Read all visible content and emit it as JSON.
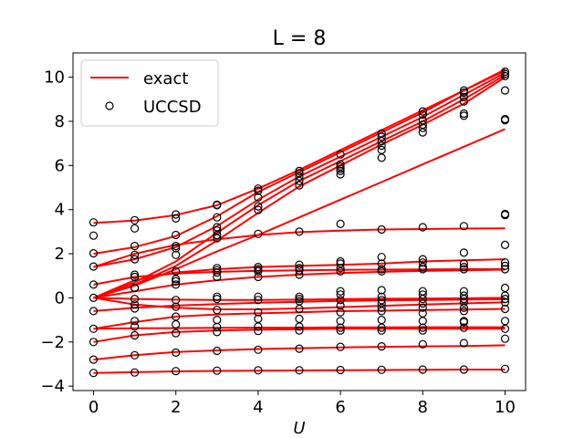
{
  "chart_data": {
    "type": "line",
    "title": "L = 8",
    "xlabel": "U",
    "ylabel": "",
    "xlim": [
      -0.5,
      10.5
    ],
    "ylim": [
      -4.2,
      11.1
    ],
    "xticks": [
      0,
      2,
      4,
      6,
      8,
      10
    ],
    "yticks": [
      -4,
      -2,
      0,
      2,
      4,
      6,
      8,
      10
    ],
    "grid": false,
    "legend_position": "upper-left",
    "legend": [
      {
        "label": "exact",
        "style": "line",
        "color": "#ff0000"
      },
      {
        "label": "UCCSD",
        "style": "circle",
        "color": "#000000"
      }
    ],
    "x": [
      0,
      1,
      2,
      3,
      4,
      5,
      6,
      7,
      8,
      9,
      10
    ],
    "series": [
      {
        "values": [
          0.0,
          0.55,
          1.3,
          2.1,
          2.85,
          3.65,
          4.45,
          5.25,
          6.05,
          6.85,
          7.65
        ],
        "color": "#ff0000"
      },
      {
        "values": [
          0.0,
          0.6,
          1.45,
          2.6,
          3.85,
          5.05,
          6.0,
          6.95,
          7.85,
          8.8,
          10.0
        ],
        "color": "#ff0000"
      },
      {
        "values": [
          0.0,
          0.7,
          1.65,
          2.95,
          4.2,
          5.3,
          6.2,
          7.1,
          8.0,
          9.0,
          10.1
        ],
        "color": "#ff0000"
      },
      {
        "values": [
          1.4,
          1.75,
          2.3,
          3.25,
          4.45,
          5.5,
          6.4,
          7.3,
          8.2,
          9.2,
          10.2
        ],
        "color": "#ff0000"
      },
      {
        "values": [
          2.0,
          2.3,
          2.8,
          3.7,
          4.8,
          5.7,
          6.6,
          7.5,
          8.4,
          9.4,
          10.3
        ],
        "color": "#ff0000"
      },
      {
        "values": [
          3.4,
          3.5,
          3.75,
          4.2,
          4.95,
          5.8,
          6.7,
          7.6,
          8.5,
          9.4,
          10.35
        ],
        "color": "#ff0000"
      },
      {
        "values": [
          1.4,
          2.0,
          2.4,
          2.65,
          2.85,
          2.98,
          3.05,
          3.1,
          3.12,
          3.14,
          3.15
        ],
        "color": "#ff0000"
      },
      {
        "values": [
          0.0,
          0.8,
          1.15,
          1.3,
          1.4,
          1.45,
          1.5,
          1.55,
          1.65,
          1.7,
          1.75
        ],
        "color": "#ff0000"
      },
      {
        "values": [
          0.6,
          0.95,
          1.1,
          1.18,
          1.22,
          1.25,
          1.27,
          1.28,
          1.29,
          1.3,
          1.3
        ],
        "color": "#ff0000"
      },
      {
        "values": [
          0.0,
          0.3,
          0.6,
          0.8,
          0.95,
          1.05,
          1.12,
          1.18,
          1.22,
          1.25,
          1.28
        ],
        "color": "#ff0000"
      },
      {
        "values": [
          0.0,
          -0.05,
          -0.08,
          -0.1,
          -0.1,
          -0.08,
          -0.06,
          -0.04,
          -0.03,
          -0.02,
          0.0
        ],
        "color": "#ff0000"
      },
      {
        "values": [
          -0.6,
          -0.45,
          -0.35,
          -0.28,
          -0.22,
          -0.18,
          -0.14,
          -0.12,
          -0.1,
          -0.08,
          -0.06
        ],
        "color": "#ff0000"
      },
      {
        "values": [
          0.0,
          -0.3,
          -0.45,
          -0.52,
          -0.52,
          -0.48,
          -0.42,
          -0.36,
          -0.3,
          -0.25,
          -0.2
        ],
        "color": "#ff0000"
      },
      {
        "values": [
          -1.4,
          -1.1,
          -0.85,
          -0.75,
          -0.7,
          -0.65,
          -0.6,
          -0.58,
          -0.55,
          -0.53,
          -0.5
        ],
        "color": "#ff0000"
      },
      {
        "values": [
          -1.4,
          -1.38,
          -1.37,
          -1.36,
          -1.35,
          -1.35,
          -1.34,
          -1.34,
          -1.33,
          -1.33,
          -1.33
        ],
        "color": "#ff0000"
      },
      {
        "values": [
          -2.0,
          -1.7,
          -1.55,
          -1.48,
          -1.44,
          -1.42,
          -1.4,
          -1.4,
          -1.4,
          -1.4,
          -1.4
        ],
        "color": "#ff0000"
      },
      {
        "values": [
          -2.8,
          -2.6,
          -2.45,
          -2.38,
          -2.32,
          -2.28,
          -2.25,
          -2.22,
          -2.2,
          -2.18,
          -2.15
        ],
        "color": "#ff0000"
      },
      {
        "values": [
          -3.4,
          -3.37,
          -3.33,
          -3.31,
          -3.3,
          -3.29,
          -3.28,
          -3.27,
          -3.26,
          -3.25,
          -3.25
        ],
        "color": "#ff0000"
      }
    ],
    "markers": [
      {
        "x": 0,
        "y": [
          3.42,
          2.82,
          2.02,
          1.42,
          0.6,
          0.0,
          -0.6,
          -1.4,
          -2.0,
          -2.8,
          -3.4
        ]
      },
      {
        "x": 1,
        "y": [
          3.52,
          3.15,
          2.35,
          1.95,
          1.75,
          1.05,
          0.95,
          0.45,
          0.45,
          -0.05,
          -0.3,
          -0.48,
          -1.05,
          -1.3,
          -1.7,
          -2.6,
          -3.38
        ]
      },
      {
        "x": 2,
        "y": [
          3.78,
          3.6,
          2.85,
          2.35,
          2.25,
          1.95,
          1.2,
          0.85,
          0.75,
          0.6,
          -0.1,
          -0.4,
          -0.85,
          -1.2,
          -1.6,
          -2.48,
          -3.32
        ]
      },
      {
        "x": 3,
        "y": [
          4.22,
          4.2,
          3.65,
          3.2,
          3.05,
          2.85,
          2.7,
          1.35,
          1.25,
          1.15,
          0.95,
          0.05,
          -0.05,
          -0.55,
          -1.0,
          -1.32,
          -1.55,
          -2.4,
          -3.3
        ]
      },
      {
        "x": 4,
        "y": [
          4.95,
          4.85,
          4.55,
          4.15,
          3.98,
          2.9,
          1.4,
          1.3,
          1.2,
          0.95,
          0.05,
          -0.1,
          -0.65,
          -0.95,
          -1.3,
          -1.5,
          -2.35,
          -3.28
        ]
      },
      {
        "x": 5,
        "y": [
          5.75,
          5.65,
          5.5,
          5.3,
          5.1,
          3.0,
          1.5,
          1.35,
          1.25,
          1.05,
          0.05,
          -0.05,
          -0.15,
          -0.5,
          -0.95,
          -1.3,
          -1.48,
          -2.3,
          -3.28
        ]
      },
      {
        "x": 6,
        "y": [
          6.5,
          6.05,
          5.95,
          5.85,
          5.75,
          5.6,
          3.35,
          1.65,
          1.55,
          1.35,
          1.2,
          0.3,
          0.15,
          -0.1,
          -0.35,
          -0.65,
          -1.05,
          -1.35,
          -1.48,
          -2.22,
          -3.27
        ]
      },
      {
        "x": 7,
        "y": [
          7.45,
          7.3,
          7.1,
          6.9,
          6.7,
          6.35,
          3.1,
          1.85,
          1.55,
          1.3,
          1.2,
          0.35,
          0.05,
          -0.1,
          -0.25,
          -0.45,
          -0.6,
          -1.0,
          -1.35,
          -1.48,
          -2.2,
          -3.26
        ]
      },
      {
        "x": 8,
        "y": [
          8.45,
          8.3,
          8.05,
          7.85,
          7.7,
          7.5,
          3.2,
          1.75,
          1.6,
          1.4,
          1.3,
          0.3,
          0.15,
          -0.05,
          -0.25,
          -0.45,
          -0.7,
          -1.05,
          -1.35,
          -1.48,
          -2.1,
          -3.25
        ]
      },
      {
        "x": 9,
        "y": [
          9.4,
          9.3,
          9.1,
          8.9,
          8.35,
          8.25,
          3.25,
          2.05,
          1.55,
          1.4,
          1.3,
          0.3,
          0.1,
          -0.05,
          -0.2,
          -0.45,
          -0.6,
          -1.05,
          -1.1,
          -1.35,
          -2.05,
          -3.25
        ]
      },
      {
        "x": 10,
        "y": [
          10.25,
          10.15,
          10.05,
          9.4,
          8.1,
          8.05,
          3.8,
          3.75,
          2.4,
          1.6,
          1.45,
          1.3,
          0.45,
          0.1,
          -0.05,
          -0.2,
          -0.5,
          -1.05,
          -1.4,
          -1.85,
          -3.22
        ]
      }
    ]
  }
}
